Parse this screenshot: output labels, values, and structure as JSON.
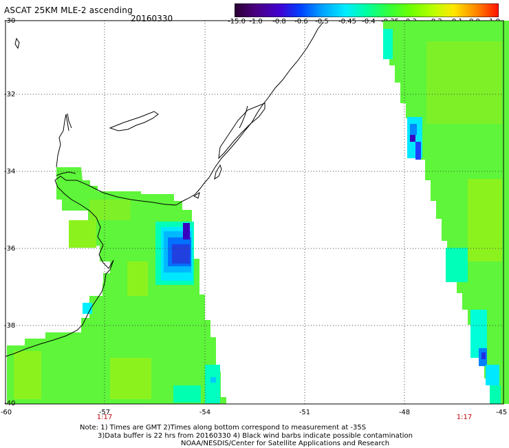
{
  "header": {
    "title": "ASCAT 25KM MLE-2 ascending",
    "date": "20160330"
  },
  "colorbar": {
    "tick_labels": [
      "-15.0",
      "-1.0",
      "-0.8",
      "-0.6",
      "-0.5",
      "-0.45",
      "-0.4",
      "-0.35",
      "-0.3",
      "-0.2",
      "-0.1",
      "0.0",
      "1.0"
    ],
    "colors": [
      "#3a0050",
      "#5500a0",
      "#2200e0",
      "#0050ff",
      "#00a8ff",
      "#00e8ff",
      "#00ffb0",
      "#30ff40",
      "#80ff00",
      "#d8ff00",
      "#ffd800",
      "#ff7000",
      "#ff0000"
    ]
  },
  "map": {
    "lat_labels": [
      "-30",
      "-32",
      "-34",
      "-36",
      "-38",
      "-40"
    ],
    "lon_labels": [
      "-60",
      "-57",
      "-54",
      "-51",
      "-48",
      "-45"
    ],
    "time_labels": [
      "1:17",
      "1:17"
    ],
    "colors": {
      "green": "#5ef53a",
      "lime": "#8cf21e",
      "cyan": "#00ffe0",
      "lightblue": "#00d8ff",
      "blue": "#0050ff",
      "deepblue": "#2020d0",
      "violet": "#3a00c0",
      "coast": "#000000",
      "grid": "#444444"
    }
  },
  "notes": {
    "line1": "Note: 1) Times are GMT 2)Times along bottom correspond to measurement at -35S",
    "line2": "3)Data buffer is 22 hrs from 20160330 4) Black wind barbs indicate possible contamination",
    "line3": "NOAA/NESDIS/Center for Satellite Applications and Research"
  }
}
